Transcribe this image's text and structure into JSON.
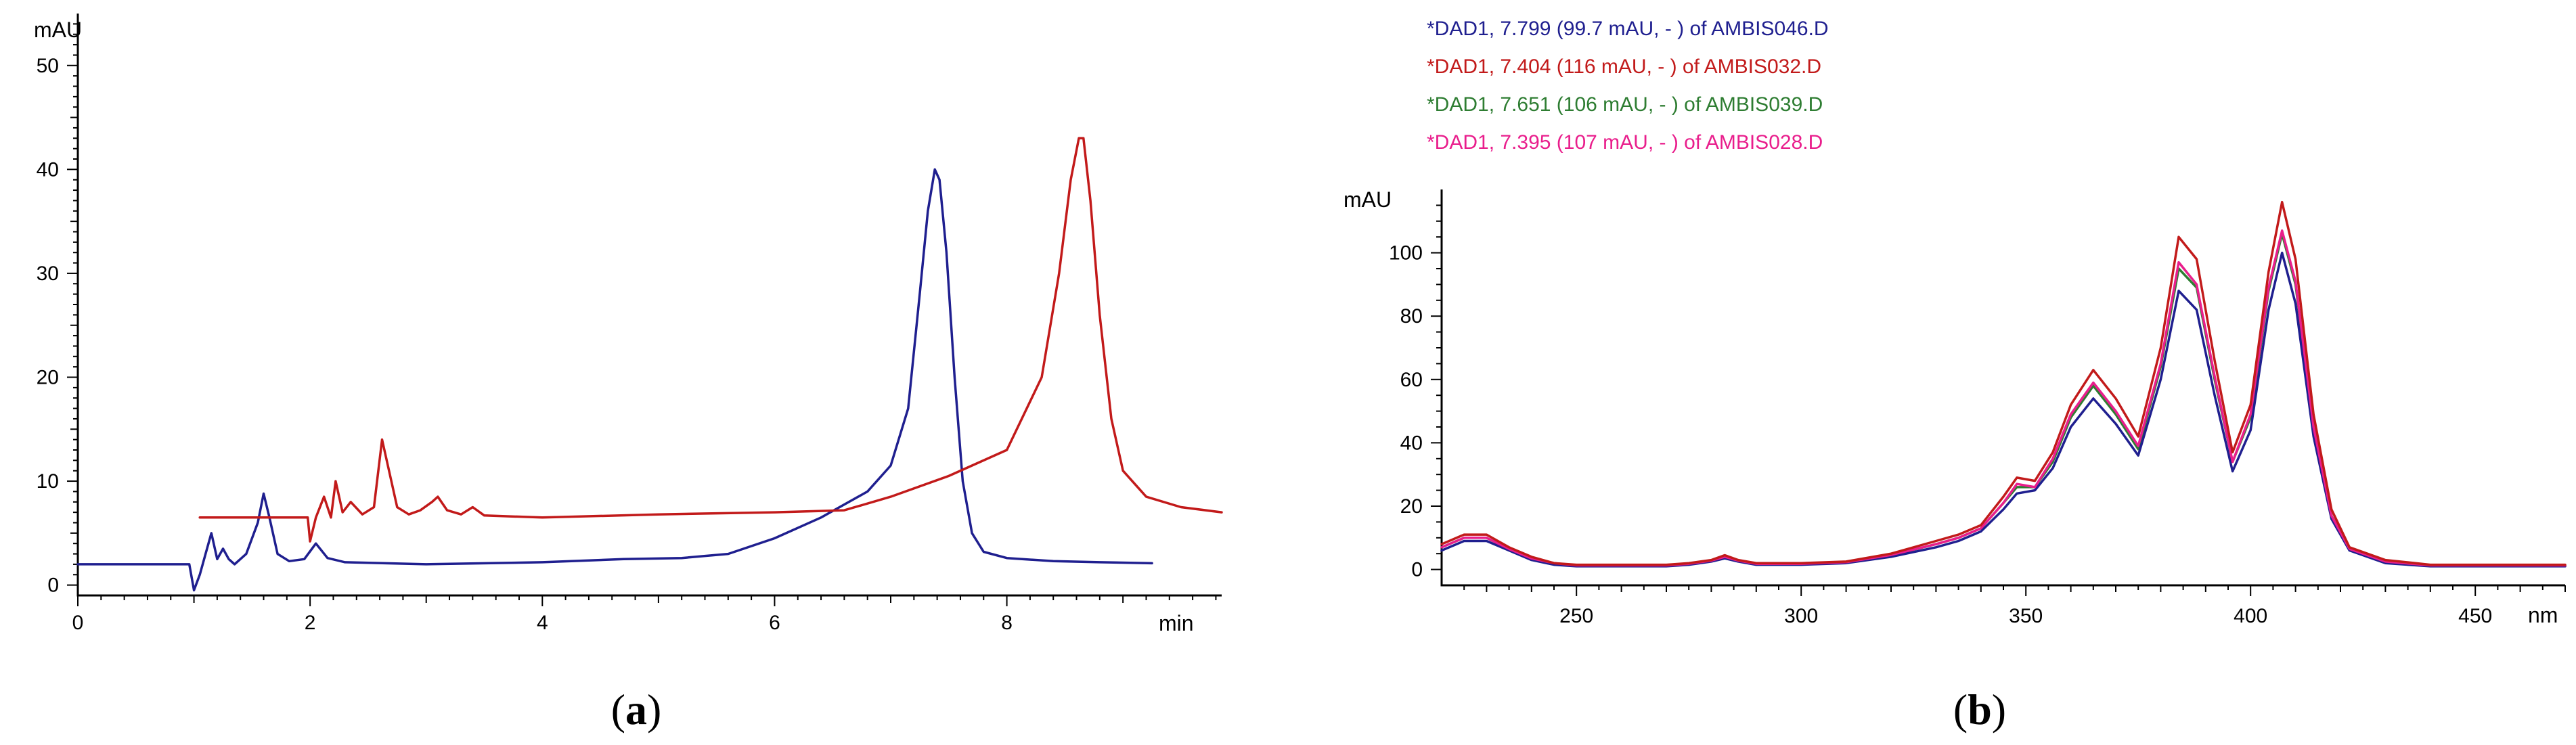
{
  "colors": {
    "blue": "#1f1f8f",
    "red": "#c21a1a",
    "green": "#2e7d32",
    "magenta": "#e91e8c",
    "axis": "#000000"
  },
  "chart_data": [
    {
      "panel": "(a)",
      "panel_letter": "a",
      "type": "line",
      "title": "",
      "ylabel": "mAU",
      "xlabel": "min",
      "xlim": [
        0,
        9.85
      ],
      "ylim": [
        -1,
        55
      ],
      "xticks": [
        0,
        2,
        4,
        6,
        8
      ],
      "yticks": [
        0,
        10,
        20,
        30,
        40,
        50
      ],
      "grid": false,
      "series": [
        {
          "name": "blue chromatogram",
          "color": "#1f1f8f",
          "x": [
            0,
            0.96,
            1.0,
            1.05,
            1.1,
            1.15,
            1.2,
            1.25,
            1.3,
            1.35,
            1.45,
            1.55,
            1.6,
            1.65,
            1.72,
            1.82,
            1.95,
            2.05,
            2.15,
            2.3,
            3.0,
            4.0,
            4.7,
            5.2,
            5.6,
            6.0,
            6.4,
            6.8,
            7.0,
            7.15,
            7.25,
            7.32,
            7.38,
            7.42,
            7.48,
            7.55,
            7.62,
            7.7,
            7.8,
            8.0,
            8.4,
            8.8,
            9.25
          ],
          "y": [
            2.0,
            2.0,
            -0.5,
            1.0,
            3.0,
            5.0,
            2.5,
            3.5,
            2.5,
            2.0,
            3.0,
            6.0,
            8.8,
            6.5,
            3.0,
            2.3,
            2.5,
            4.0,
            2.6,
            2.2,
            2.0,
            2.2,
            2.5,
            2.6,
            3.0,
            4.5,
            6.5,
            9.0,
            11.5,
            17.0,
            28.0,
            36.0,
            40.0,
            39.0,
            32.0,
            20.0,
            10.0,
            5.0,
            3.2,
            2.6,
            2.3,
            2.2,
            2.1
          ]
        },
        {
          "name": "red chromatogram",
          "color": "#c21a1a",
          "x": [
            1.05,
            1.98,
            2.0,
            2.05,
            2.12,
            2.18,
            2.22,
            2.28,
            2.35,
            2.45,
            2.55,
            2.62,
            2.68,
            2.75,
            2.85,
            2.95,
            3.05,
            3.1,
            3.18,
            3.3,
            3.4,
            3.5,
            4.0,
            5.0,
            6.0,
            6.6,
            7.0,
            7.5,
            8.0,
            8.3,
            8.45,
            8.55,
            8.62,
            8.66,
            8.72,
            8.8,
            8.9,
            9.0,
            9.2,
            9.5,
            9.85
          ],
          "y": [
            6.5,
            6.5,
            4.2,
            6.5,
            8.5,
            6.5,
            10.0,
            7.0,
            8.0,
            6.8,
            7.5,
            14.0,
            11.0,
            7.5,
            6.8,
            7.2,
            8.0,
            8.5,
            7.2,
            6.8,
            7.5,
            6.7,
            6.5,
            6.8,
            7.0,
            7.2,
            8.5,
            10.5,
            13.0,
            20.0,
            30.0,
            39.0,
            43.0,
            43.0,
            37.0,
            26.0,
            16.0,
            11.0,
            8.5,
            7.5,
            7.0
          ]
        }
      ]
    },
    {
      "panel": "(b)",
      "panel_letter": "b",
      "type": "line",
      "title": "",
      "ylabel": "mAU",
      "xlabel": "nm",
      "xlim": [
        220,
        470
      ],
      "ylim": [
        -5,
        120
      ],
      "xticks": [
        250,
        300,
        350,
        400,
        450
      ],
      "yticks": [
        0,
        20,
        40,
        60,
        80,
        100
      ],
      "grid": false,
      "legend_position": "top-left above plot",
      "legend": [
        {
          "label": "*DAD1, 7.799 (99.7 mAU, - ) of AMBIS046.D",
          "color": "#1f1f8f"
        },
        {
          "label": "*DAD1, 7.404 (116 mAU, - ) of AMBIS032.D",
          "color": "#c21a1a"
        },
        {
          "label": "*DAD1, 7.651 (106 mAU, - ) of AMBIS039.D",
          "color": "#2e7d32"
        },
        {
          "label": "*DAD1, 7.395 (107 mAU, - ) of AMBIS028.D",
          "color": "#e91e8c"
        }
      ],
      "x": [
        220,
        225,
        230,
        235,
        240,
        245,
        250,
        260,
        270,
        275,
        280,
        283,
        286,
        290,
        300,
        310,
        320,
        330,
        335,
        340,
        345,
        348,
        352,
        356,
        360,
        365,
        370,
        375,
        380,
        384,
        388,
        392,
        396,
        400,
        404,
        407,
        410,
        414,
        418,
        422,
        430,
        440,
        450,
        460,
        470
      ],
      "series": [
        {
          "name": "AMBIS046.D",
          "color": "#1f1f8f",
          "y": [
            6,
            9,
            9,
            6,
            3,
            1.5,
            1,
            1,
            1,
            1.5,
            2.5,
            3.5,
            2.5,
            1.5,
            1.5,
            2,
            4,
            7,
            9,
            12,
            19,
            24,
            25,
            32,
            45,
            54,
            46,
            36,
            60,
            88,
            82,
            55,
            31,
            44,
            82,
            100,
            84,
            42,
            16,
            6,
            2,
            1,
            1,
            1,
            1
          ]
        },
        {
          "name": "AMBIS032.D",
          "color": "#c21a1a",
          "y": [
            8,
            11,
            11,
            7,
            4,
            2,
            1.5,
            1.5,
            1.5,
            2,
            3,
            4.5,
            3,
            2,
            2,
            2.5,
            5,
            9,
            11,
            14,
            23,
            29,
            28,
            37,
            52,
            63,
            54,
            42,
            70,
            105,
            98,
            66,
            37,
            52,
            94,
            116,
            98,
            49,
            19,
            7,
            3,
            1.5,
            1.5,
            1.5,
            1.5
          ]
        },
        {
          "name": "AMBIS039.D",
          "color": "#2e7d32",
          "y": [
            7,
            10,
            10,
            6.5,
            3.5,
            2,
            1.2,
            1.2,
            1.2,
            1.8,
            2.8,
            4,
            2.8,
            1.8,
            1.8,
            2.2,
            4.5,
            8,
            10,
            13,
            21,
            26,
            26,
            34,
            48,
            58,
            49,
            38,
            64,
            95,
            89,
            60,
            34,
            48,
            88,
            106,
            90,
            45,
            17,
            6.5,
            2.5,
            1.2,
            1.2,
            1.2,
            1.2
          ]
        },
        {
          "name": "AMBIS028.D",
          "color": "#e91e8c",
          "y": [
            7,
            10,
            10,
            6.5,
            3.5,
            2,
            1.3,
            1.3,
            1.3,
            1.8,
            2.8,
            4,
            2.8,
            1.8,
            1.8,
            2.3,
            4.6,
            8,
            10,
            13,
            21,
            27,
            26,
            35,
            49,
            59,
            50,
            39,
            65,
            97,
            90,
            61,
            34,
            49,
            89,
            107,
            91,
            45,
            17,
            6.5,
            2.5,
            1.3,
            1.3,
            1.3,
            1.3
          ]
        }
      ]
    }
  ]
}
